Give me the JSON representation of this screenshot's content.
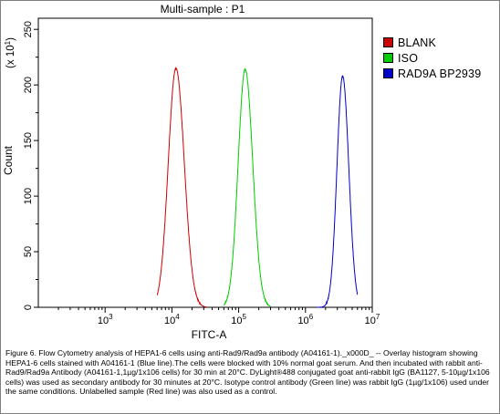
{
  "chart_data": {
    "type": "line",
    "title": "Multi-sample : P1",
    "xlabel": "FITC-A",
    "ylabel": "Count",
    "y_scale_label": "(x 10",
    "y_scale_exponent": "1",
    "y_scale_close": ")",
    "xscale": "log",
    "xlim": [
      100,
      10000000
    ],
    "ylim": [
      0,
      260
    ],
    "x_ticks": [
      {
        "value": 1000,
        "base": "10",
        "exp": "3"
      },
      {
        "value": 10000,
        "base": "10",
        "exp": "4"
      },
      {
        "value": 100000,
        "base": "10",
        "exp": "5"
      },
      {
        "value": 1000000,
        "base": "10",
        "exp": "6"
      },
      {
        "value": 10000000,
        "base": "10",
        "exp": "7"
      }
    ],
    "y_ticks": [
      {
        "value": 0,
        "label": "0"
      },
      {
        "value": 50,
        "label": "50"
      },
      {
        "value": 100,
        "label": "100"
      },
      {
        "value": 150,
        "label": "150"
      },
      {
        "value": 200,
        "label": "200"
      },
      {
        "value": 250,
        "label": "250"
      }
    ],
    "grid": false,
    "legend_position": "right",
    "series": [
      {
        "name": "BLANK",
        "color": "#cc0000",
        "peak_x": 11500,
        "peak_y": 215,
        "log_sigma": 0.115,
        "log_start": 3.78,
        "log_end": 4.52
      },
      {
        "name": "ISO",
        "color": "#00cc00",
        "peak_x": 125000,
        "peak_y": 214,
        "log_sigma": 0.105,
        "log_start": 4.78,
        "log_end": 5.48
      },
      {
        "name": "RAD9A BP2939",
        "color": "#0000cc",
        "peak_x": 3600000,
        "peak_y": 208,
        "log_sigma": 0.085,
        "log_start": 6.18,
        "log_end": 6.78
      }
    ]
  },
  "caption": "Figure 6. Flow Cytometry analysis of HEPA1-6 cells using anti-Rad9/Rad9a antibody (A04161-1)._x000D_ -- Overlay histogram showing HEPA1-6 cells stained with A04161-1 (Blue line).The cells were blocked with 10% normal goat serum. And then incubated with rabbit anti-Rad9/Rad9a Antibody (A04161-1,1µg/1x106 cells) for 30 min at 20°C. DyLight®488 conjugated goat anti-rabbit IgG (BA1127, 5-10µg/1x106 cells) was used as secondary antibody for 30 minutes at 20°C. Isotype control antibody (Green line) was rabbit IgG (1µg/1x106) used under the same conditions. Unlabelled sample (Red line) was also used as a control."
}
